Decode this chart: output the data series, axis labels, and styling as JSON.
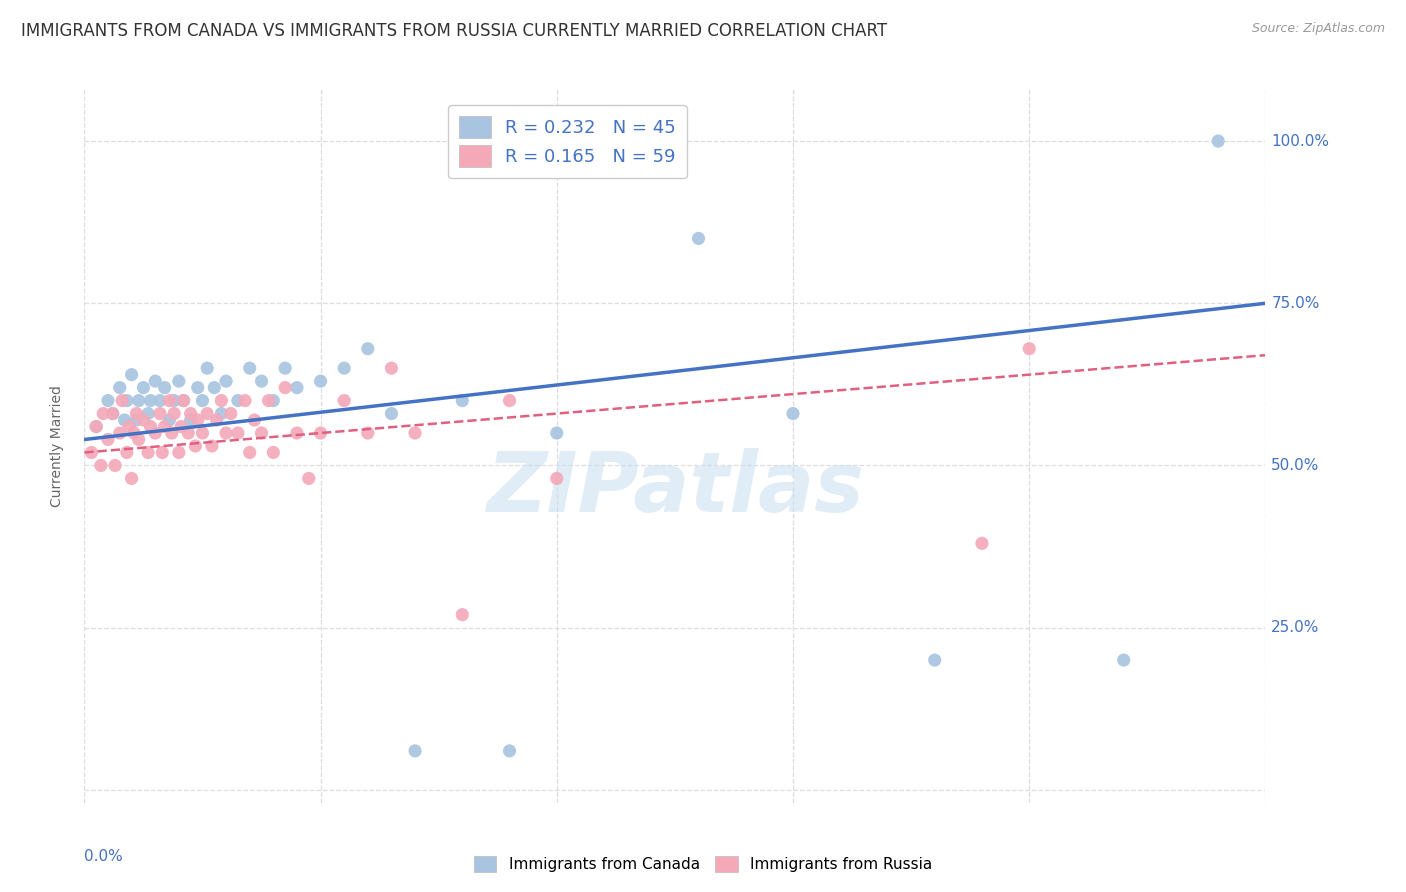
{
  "title": "IMMIGRANTS FROM CANADA VS IMMIGRANTS FROM RUSSIA CURRENTLY MARRIED CORRELATION CHART",
  "source": "Source: ZipAtlas.com",
  "ylabel": "Currently Married",
  "canada_color": "#a8c4e0",
  "russia_color": "#f4a8b8",
  "canada_line_color": "#4472c4",
  "russia_line_color": "#e06080",
  "legend_R_canada": "R = 0.232",
  "legend_N_canada": "N = 45",
  "legend_R_russia": "R = 0.165",
  "legend_N_russia": "N = 59",
  "canada_label": "Immigrants from Canada",
  "russia_label": "Immigrants from Russia",
  "watermark": "ZIPatlas",
  "xlim": [
    0.0,
    0.5
  ],
  "ylim": [
    -0.02,
    1.08
  ],
  "xticks": [
    0.0,
    0.1,
    0.2,
    0.3,
    0.4,
    0.5
  ],
  "yticks": [
    0.0,
    0.25,
    0.5,
    0.75,
    1.0
  ],
  "canada_x": [
    0.005,
    0.01,
    0.012,
    0.015,
    0.017,
    0.018,
    0.02,
    0.022,
    0.023,
    0.025,
    0.027,
    0.028,
    0.03,
    0.032,
    0.034,
    0.036,
    0.038,
    0.04,
    0.042,
    0.045,
    0.048,
    0.05,
    0.052,
    0.055,
    0.058,
    0.06,
    0.065,
    0.07,
    0.075,
    0.08,
    0.085,
    0.09,
    0.1,
    0.11,
    0.12,
    0.13,
    0.14,
    0.16,
    0.18,
    0.2,
    0.26,
    0.3,
    0.36,
    0.44,
    0.48
  ],
  "canada_y": [
    0.56,
    0.6,
    0.58,
    0.62,
    0.57,
    0.6,
    0.64,
    0.57,
    0.6,
    0.62,
    0.58,
    0.6,
    0.63,
    0.6,
    0.62,
    0.57,
    0.6,
    0.63,
    0.6,
    0.57,
    0.62,
    0.6,
    0.65,
    0.62,
    0.58,
    0.63,
    0.6,
    0.65,
    0.63,
    0.6,
    0.65,
    0.62,
    0.63,
    0.65,
    0.68,
    0.58,
    0.06,
    0.6,
    0.06,
    0.55,
    0.85,
    0.58,
    0.2,
    0.2,
    1.0
  ],
  "russia_x": [
    0.003,
    0.005,
    0.007,
    0.008,
    0.01,
    0.012,
    0.013,
    0.015,
    0.016,
    0.018,
    0.019,
    0.02,
    0.021,
    0.022,
    0.023,
    0.025,
    0.027,
    0.028,
    0.03,
    0.032,
    0.033,
    0.034,
    0.036,
    0.037,
    0.038,
    0.04,
    0.041,
    0.042,
    0.044,
    0.045,
    0.047,
    0.048,
    0.05,
    0.052,
    0.054,
    0.056,
    0.058,
    0.06,
    0.062,
    0.065,
    0.068,
    0.07,
    0.072,
    0.075,
    0.078,
    0.08,
    0.085,
    0.09,
    0.095,
    0.1,
    0.11,
    0.12,
    0.13,
    0.14,
    0.16,
    0.18,
    0.2,
    0.38,
    0.4
  ],
  "russia_y": [
    0.52,
    0.56,
    0.5,
    0.58,
    0.54,
    0.58,
    0.5,
    0.55,
    0.6,
    0.52,
    0.56,
    0.48,
    0.55,
    0.58,
    0.54,
    0.57,
    0.52,
    0.56,
    0.55,
    0.58,
    0.52,
    0.56,
    0.6,
    0.55,
    0.58,
    0.52,
    0.56,
    0.6,
    0.55,
    0.58,
    0.53,
    0.57,
    0.55,
    0.58,
    0.53,
    0.57,
    0.6,
    0.55,
    0.58,
    0.55,
    0.6,
    0.52,
    0.57,
    0.55,
    0.6,
    0.52,
    0.62,
    0.55,
    0.48,
    0.55,
    0.6,
    0.55,
    0.65,
    0.55,
    0.27,
    0.6,
    0.48,
    0.38,
    0.68
  ],
  "background_color": "#ffffff",
  "grid_color": "#dddddd",
  "tick_label_color": "#4472c4",
  "title_color": "#333333",
  "title_fontsize": 12,
  "source_fontsize": 9,
  "axis_label_fontsize": 10,
  "tick_fontsize": 11,
  "legend_fontsize": 13,
  "watermark_fontsize": 60
}
